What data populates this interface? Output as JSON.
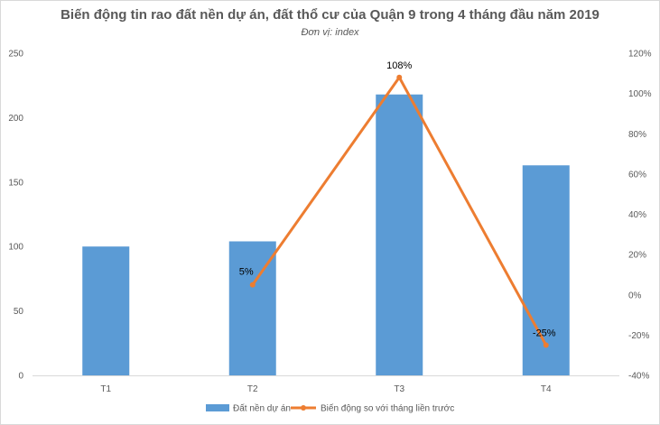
{
  "chart_data": {
    "type": "bar",
    "title": "Biến động tin rao đất nền dự án, đất thổ cư của Quận 9 trong 4 tháng đầu năm 2019",
    "subtitle": "Đơn vị: index",
    "categories": [
      "T1",
      "T2",
      "T3",
      "T4"
    ],
    "series": [
      {
        "name": "Đất nền dự án",
        "type": "bar",
        "axis": "left",
        "color": "#5b9bd5",
        "values": [
          100,
          104,
          218,
          163
        ]
      },
      {
        "name": "Biến động so với tháng liền trước",
        "type": "line",
        "axis": "right",
        "color": "#ed7d31",
        "values": [
          null,
          5,
          108,
          -25
        ],
        "data_labels": [
          "",
          "5%",
          "108%",
          "-25%"
        ]
      }
    ],
    "y_left": {
      "ylim": [
        0,
        250
      ],
      "ticks": [
        "0",
        "50",
        "100",
        "150",
        "200",
        "250"
      ]
    },
    "y_right": {
      "ylim": [
        -40,
        120
      ],
      "ticks": [
        "-40%",
        "-20%",
        "0%",
        "20%",
        "40%",
        "60%",
        "80%",
        "100%",
        "120%"
      ]
    },
    "grid": false,
    "legend": "bottom"
  }
}
